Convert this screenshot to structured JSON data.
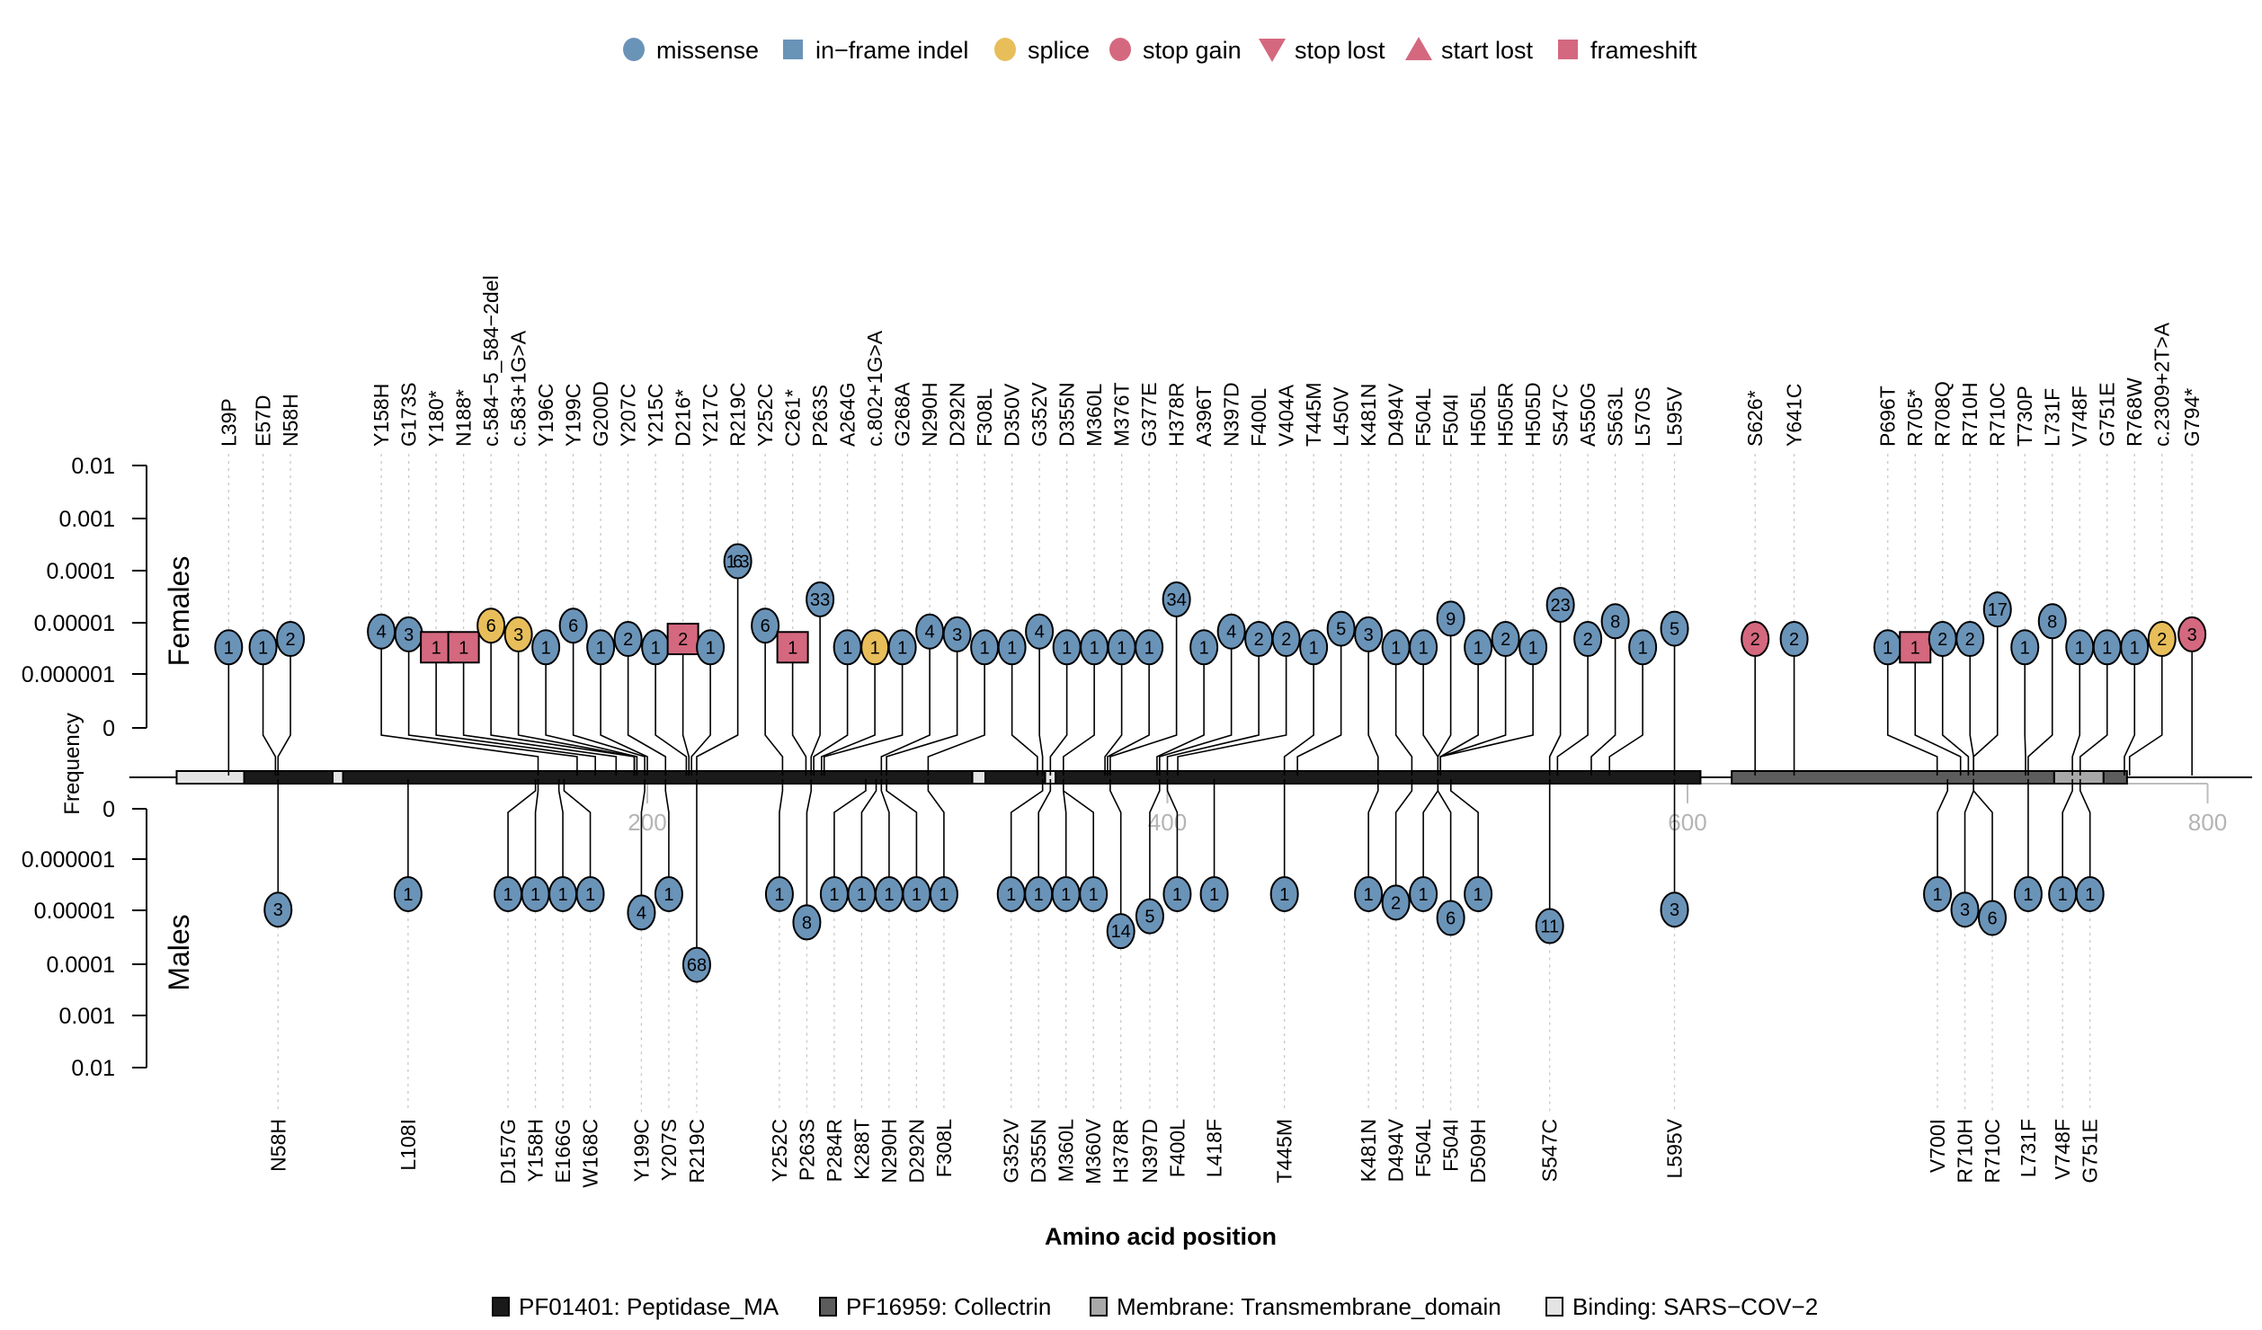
{
  "chart_data": {
    "type": "lollipop",
    "title": "",
    "xlabel": "Amino acid position",
    "ylabel": "Frequency",
    "panels": [
      "Females",
      "Males"
    ],
    "x_range": [
      0,
      805
    ],
    "x_ticks": [
      200,
      400,
      600,
      800
    ],
    "y_scale": "log10",
    "y_ticks": [
      "0",
      "0.000001",
      "0.00001",
      "0.0001",
      "0.001",
      "0.01"
    ],
    "y_tick_values": [
      0,
      1e-06,
      1e-05,
      0.0001,
      0.001,
      0.01
    ],
    "colors": {
      "missense": "#6a93b8",
      "in-frame indel": "#6a93b8",
      "splice": "#e8be5a",
      "stop gain": "#d4687f",
      "stop lost": "#d4687f",
      "start lost": "#d4687f",
      "frameshift": "#d4687f"
    },
    "legend": [
      {
        "label": "missense",
        "shape": "circle",
        "color": "#6a93b8"
      },
      {
        "label": "in−frame indel",
        "shape": "square",
        "color": "#6a93b8"
      },
      {
        "label": "splice",
        "shape": "circle",
        "color": "#e8be5a"
      },
      {
        "label": "stop gain",
        "shape": "circle",
        "color": "#d4687f"
      },
      {
        "label": "stop lost",
        "shape": "triangle-down",
        "color": "#d4687f"
      },
      {
        "label": "start lost",
        "shape": "triangle-up",
        "color": "#d4687f"
      },
      {
        "label": "frameshift",
        "shape": "square",
        "color": "#d4687f"
      }
    ],
    "legend_placement": "top-center",
    "domains": [
      {
        "name": "Binding: SARS−COV−2",
        "start": 19,
        "end": 45,
        "color": "#e4e4e4"
      },
      {
        "name": "PF01401: Peptidase_MA",
        "start": 45,
        "end": 79,
        "color": "#1a1a1a"
      },
      {
        "name": "Binding: SARS−COV−2",
        "start": 79,
        "end": 83,
        "color": "#e4e4e4"
      },
      {
        "name": "PF01401: Peptidase_MA",
        "start": 83,
        "end": 325,
        "color": "#1a1a1a"
      },
      {
        "name": "Binding: SARS−COV−2",
        "start": 325,
        "end": 330,
        "color": "#e4e4e4"
      },
      {
        "name": "PF01401: Peptidase_MA",
        "start": 330,
        "end": 353,
        "color": "#1a1a1a"
      },
      {
        "name": "Binding: SARS−COV−2",
        "start": 353,
        "end": 357,
        "color": "#e4e4e4"
      },
      {
        "name": "PF01401: Peptidase_MA",
        "start": 357,
        "end": 605,
        "color": "#1a1a1a"
      },
      {
        "name": "PF16959: Collectrin",
        "start": 617,
        "end": 741,
        "color": "#5c5c5c"
      },
      {
        "name": "Membrane: Transmembrane_domain",
        "start": 741,
        "end": 760,
        "color": "#a8a8a8"
      },
      {
        "name": "PF16959: Collectrin",
        "start": 760,
        "end": 769,
        "color": "#5c5c5c"
      }
    ],
    "protein_length": 805,
    "domain_legend": [
      {
        "label": "PF01401: Peptidase_MA",
        "color": "#1a1a1a"
      },
      {
        "label": "PF16959: Collectrin",
        "color": "#5c5c5c"
      },
      {
        "label": "Membrane: Transmembrane_domain",
        "color": "#a8a8a8"
      },
      {
        "label": "Binding: SARS−COV−2",
        "color": "#e4e4e4"
      }
    ],
    "females": [
      {
        "label": "L39P",
        "pos": 39,
        "count": 1,
        "type": "missense",
        "freq": 3.4e-06
      },
      {
        "label": "E57D",
        "pos": 57,
        "count": 1,
        "type": "missense",
        "freq": 3.4e-06
      },
      {
        "label": "N58H",
        "pos": 58,
        "count": 2,
        "type": "missense",
        "freq": 4.9e-06
      },
      {
        "label": "Y158H",
        "pos": 158,
        "count": 4,
        "type": "missense",
        "freq": 6.8e-06
      },
      {
        "label": "G173S",
        "pos": 173,
        "count": 3,
        "type": "missense",
        "freq": 6e-06
      },
      {
        "label": "Y180*",
        "pos": 180,
        "count": 1,
        "type": "frameshift",
        "freq": 3.4e-06
      },
      {
        "label": "N188*",
        "pos": 188,
        "count": 1,
        "type": "frameshift",
        "freq": 3.4e-06
      },
      {
        "label": "c.584−5_584−2del",
        "pos": 195,
        "count": 6,
        "type": "splice",
        "freq": 8.8e-06
      },
      {
        "label": "c.583+1G>A",
        "pos": 195,
        "count": 3,
        "type": "splice",
        "freq": 6e-06
      },
      {
        "label": "Y196C",
        "pos": 196,
        "count": 1,
        "type": "missense",
        "freq": 3.4e-06
      },
      {
        "label": "Y199C",
        "pos": 199,
        "count": 6,
        "type": "missense",
        "freq": 8.8e-06
      },
      {
        "label": "G200D",
        "pos": 200,
        "count": 1,
        "type": "missense",
        "freq": 3.4e-06
      },
      {
        "label": "Y207C",
        "pos": 207,
        "count": 2,
        "type": "missense",
        "freq": 4.9e-06
      },
      {
        "label": "Y215C",
        "pos": 215,
        "count": 1,
        "type": "missense",
        "freq": 3.4e-06
      },
      {
        "label": "D216*",
        "pos": 216,
        "count": 2,
        "type": "frameshift",
        "freq": 4.9e-06
      },
      {
        "label": "Y217C",
        "pos": 217,
        "count": 1,
        "type": "missense",
        "freq": 3.4e-06
      },
      {
        "label": "R219C",
        "pos": 219,
        "count": 163,
        "type": "missense",
        "freq": 0.00015
      },
      {
        "label": "Y252C",
        "pos": 252,
        "count": 6,
        "type": "missense",
        "freq": 8.8e-06
      },
      {
        "label": "C261*",
        "pos": 261,
        "count": 1,
        "type": "frameshift",
        "freq": 3.4e-06
      },
      {
        "label": "P263S",
        "pos": 263,
        "count": 33,
        "type": "missense",
        "freq": 2.8e-05
      },
      {
        "label": "A264G",
        "pos": 264,
        "count": 1,
        "type": "missense",
        "freq": 3.4e-06
      },
      {
        "label": "c.802+1G>A",
        "pos": 267,
        "count": 1,
        "type": "splice",
        "freq": 3.4e-06
      },
      {
        "label": "G268A",
        "pos": 268,
        "count": 1,
        "type": "missense",
        "freq": 3.4e-06
      },
      {
        "label": "N290H",
        "pos": 290,
        "count": 4,
        "type": "missense",
        "freq": 6.8e-06
      },
      {
        "label": "D292N",
        "pos": 292,
        "count": 3,
        "type": "missense",
        "freq": 6e-06
      },
      {
        "label": "F308L",
        "pos": 308,
        "count": 1,
        "type": "missense",
        "freq": 3.4e-06
      },
      {
        "label": "D350V",
        "pos": 350,
        "count": 1,
        "type": "missense",
        "freq": 3.4e-06
      },
      {
        "label": "G352V",
        "pos": 352,
        "count": 4,
        "type": "missense",
        "freq": 6.8e-06
      },
      {
        "label": "D355N",
        "pos": 355,
        "count": 1,
        "type": "missense",
        "freq": 3.4e-06
      },
      {
        "label": "M360L",
        "pos": 360,
        "count": 1,
        "type": "missense",
        "freq": 3.4e-06
      },
      {
        "label": "M376T",
        "pos": 376,
        "count": 1,
        "type": "missense",
        "freq": 3.4e-06
      },
      {
        "label": "G377E",
        "pos": 377,
        "count": 1,
        "type": "missense",
        "freq": 3.4e-06
      },
      {
        "label": "H378R",
        "pos": 378,
        "count": 34,
        "type": "missense",
        "freq": 2.8e-05
      },
      {
        "label": "A396T",
        "pos": 396,
        "count": 1,
        "type": "missense",
        "freq": 3.4e-06
      },
      {
        "label": "N397D",
        "pos": 397,
        "count": 4,
        "type": "missense",
        "freq": 6.8e-06
      },
      {
        "label": "F400L",
        "pos": 400,
        "count": 2,
        "type": "missense",
        "freq": 4.9e-06
      },
      {
        "label": "V404A",
        "pos": 404,
        "count": 2,
        "type": "missense",
        "freq": 4.9e-06
      },
      {
        "label": "T445M",
        "pos": 445,
        "count": 1,
        "type": "missense",
        "freq": 3.4e-06
      },
      {
        "label": "L450V",
        "pos": 450,
        "count": 5,
        "type": "missense",
        "freq": 7.7e-06
      },
      {
        "label": "K481N",
        "pos": 481,
        "count": 3,
        "type": "missense",
        "freq": 6e-06
      },
      {
        "label": "D494V",
        "pos": 494,
        "count": 1,
        "type": "missense",
        "freq": 3.4e-06
      },
      {
        "label": "F504L",
        "pos": 504,
        "count": 1,
        "type": "missense",
        "freq": 3.4e-06
      },
      {
        "label": "F504I",
        "pos": 504,
        "count": 9,
        "type": "missense",
        "freq": 1.2e-05
      },
      {
        "label": "H505L",
        "pos": 505,
        "count": 1,
        "type": "missense",
        "freq": 3.4e-06
      },
      {
        "label": "H505R",
        "pos": 505,
        "count": 2,
        "type": "missense",
        "freq": 4.9e-06
      },
      {
        "label": "H505D",
        "pos": 505,
        "count": 1,
        "type": "missense",
        "freq": 3.4e-06
      },
      {
        "label": "S547C",
        "pos": 547,
        "count": 23,
        "type": "missense",
        "freq": 2.2e-05
      },
      {
        "label": "A550G",
        "pos": 550,
        "count": 2,
        "type": "missense",
        "freq": 4.9e-06
      },
      {
        "label": "S563L",
        "pos": 563,
        "count": 8,
        "type": "missense",
        "freq": 1.07e-05
      },
      {
        "label": "L570S",
        "pos": 570,
        "count": 1,
        "type": "missense",
        "freq": 3.4e-06
      },
      {
        "label": "L595V",
        "pos": 595,
        "count": 5,
        "type": "missense",
        "freq": 7.7e-06
      },
      {
        "label": "S626*",
        "pos": 626,
        "count": 2,
        "type": "stop gain",
        "freq": 4.9e-06
      },
      {
        "label": "Y641C",
        "pos": 641,
        "count": 2,
        "type": "missense",
        "freq": 4.9e-06
      },
      {
        "label": "P696T",
        "pos": 696,
        "count": 1,
        "type": "missense",
        "freq": 3.4e-06
      },
      {
        "label": "R705*",
        "pos": 705,
        "count": 1,
        "type": "frameshift",
        "freq": 3.4e-06
      },
      {
        "label": "R708Q",
        "pos": 708,
        "count": 2,
        "type": "missense",
        "freq": 4.9e-06
      },
      {
        "label": "R710H",
        "pos": 710,
        "count": 2,
        "type": "missense",
        "freq": 4.9e-06
      },
      {
        "label": "R710C",
        "pos": 710,
        "count": 17,
        "type": "missense",
        "freq": 1.8e-05
      },
      {
        "label": "T730P",
        "pos": 730,
        "count": 1,
        "type": "missense",
        "freq": 3.4e-06
      },
      {
        "label": "L731F",
        "pos": 731,
        "count": 8,
        "type": "missense",
        "freq": 1.07e-05
      },
      {
        "label": "V748F",
        "pos": 748,
        "count": 1,
        "type": "missense",
        "freq": 3.4e-06
      },
      {
        "label": "G751E",
        "pos": 751,
        "count": 1,
        "type": "missense",
        "freq": 3.4e-06
      },
      {
        "label": "R768W",
        "pos": 768,
        "count": 1,
        "type": "missense",
        "freq": 3.4e-06
      },
      {
        "label": "c.2309+2T>A",
        "pos": 770,
        "count": 2,
        "type": "splice",
        "freq": 4.9e-06
      },
      {
        "label": "G794*",
        "pos": 794,
        "count": 3,
        "type": "stop gain",
        "freq": 6e-06
      }
    ],
    "males": [
      {
        "label": "N58H",
        "pos": 58,
        "count": 3,
        "type": "missense",
        "freq": 9.7e-06
      },
      {
        "label": "L108I",
        "pos": 108,
        "count": 1,
        "type": "missense",
        "freq": 4.9e-06
      },
      {
        "label": "D157G",
        "pos": 157,
        "count": 1,
        "type": "missense",
        "freq": 4.9e-06
      },
      {
        "label": "Y158H",
        "pos": 158,
        "count": 1,
        "type": "missense",
        "freq": 4.9e-06
      },
      {
        "label": "E166G",
        "pos": 166,
        "count": 1,
        "type": "missense",
        "freq": 4.9e-06
      },
      {
        "label": "W168C",
        "pos": 168,
        "count": 1,
        "type": "missense",
        "freq": 4.9e-06
      },
      {
        "label": "Y199C",
        "pos": 199,
        "count": 4,
        "type": "missense",
        "freq": 1.1e-05
      },
      {
        "label": "Y207S",
        "pos": 207,
        "count": 1,
        "type": "missense",
        "freq": 4.9e-06
      },
      {
        "label": "R219C",
        "pos": 219,
        "count": 68,
        "type": "missense",
        "freq": 0.00011
      },
      {
        "label": "Y252C",
        "pos": 252,
        "count": 1,
        "type": "missense",
        "freq": 4.9e-06
      },
      {
        "label": "P263S",
        "pos": 263,
        "count": 8,
        "type": "missense",
        "freq": 1.7e-05
      },
      {
        "label": "P284R",
        "pos": 284,
        "count": 1,
        "type": "missense",
        "freq": 4.9e-06
      },
      {
        "label": "K288T",
        "pos": 288,
        "count": 1,
        "type": "missense",
        "freq": 4.9e-06
      },
      {
        "label": "N290H",
        "pos": 290,
        "count": 1,
        "type": "missense",
        "freq": 4.9e-06
      },
      {
        "label": "D292N",
        "pos": 292,
        "count": 1,
        "type": "missense",
        "freq": 4.9e-06
      },
      {
        "label": "F308L",
        "pos": 308,
        "count": 1,
        "type": "missense",
        "freq": 4.9e-06
      },
      {
        "label": "G352V",
        "pos": 352,
        "count": 1,
        "type": "missense",
        "freq": 4.9e-06
      },
      {
        "label": "D355N",
        "pos": 355,
        "count": 1,
        "type": "missense",
        "freq": 4.9e-06
      },
      {
        "label": "M360L",
        "pos": 360,
        "count": 1,
        "type": "missense",
        "freq": 4.9e-06
      },
      {
        "label": "M360V",
        "pos": 360,
        "count": 1,
        "type": "missense",
        "freq": 4.9e-06
      },
      {
        "label": "H378R",
        "pos": 378,
        "count": 14,
        "type": "missense",
        "freq": 2.5e-05
      },
      {
        "label": "N397D",
        "pos": 397,
        "count": 5,
        "type": "missense",
        "freq": 1.3e-05
      },
      {
        "label": "F400L",
        "pos": 400,
        "count": 1,
        "type": "missense",
        "freq": 4.9e-06
      },
      {
        "label": "L418F",
        "pos": 418,
        "count": 1,
        "type": "missense",
        "freq": 4.9e-06
      },
      {
        "label": "T445M",
        "pos": 445,
        "count": 1,
        "type": "missense",
        "freq": 4.9e-06
      },
      {
        "label": "K481N",
        "pos": 481,
        "count": 1,
        "type": "missense",
        "freq": 4.9e-06
      },
      {
        "label": "D494V",
        "pos": 494,
        "count": 2,
        "type": "missense",
        "freq": 7.1e-06
      },
      {
        "label": "F504L",
        "pos": 504,
        "count": 1,
        "type": "missense",
        "freq": 4.9e-06
      },
      {
        "label": "F504I",
        "pos": 504,
        "count": 6,
        "type": "missense",
        "freq": 1.4e-05
      },
      {
        "label": "D509H",
        "pos": 509,
        "count": 1,
        "type": "missense",
        "freq": 4.9e-06
      },
      {
        "label": "S547C",
        "pos": 547,
        "count": 11,
        "type": "missense",
        "freq": 2e-05
      },
      {
        "label": "L595V",
        "pos": 595,
        "count": 3,
        "type": "missense",
        "freq": 9.7e-06
      },
      {
        "label": "V700I",
        "pos": 700,
        "count": 1,
        "type": "missense",
        "freq": 4.9e-06
      },
      {
        "label": "R710H",
        "pos": 710,
        "count": 3,
        "type": "missense",
        "freq": 9.7e-06
      },
      {
        "label": "R710C",
        "pos": 710,
        "count": 6,
        "type": "missense",
        "freq": 1.4e-05
      },
      {
        "label": "L731F",
        "pos": 731,
        "count": 1,
        "type": "missense",
        "freq": 4.9e-06
      },
      {
        "label": "V748F",
        "pos": 748,
        "count": 1,
        "type": "missense",
        "freq": 4.9e-06
      },
      {
        "label": "G751E",
        "pos": 751,
        "count": 1,
        "type": "missense",
        "freq": 4.9e-06
      }
    ]
  }
}
